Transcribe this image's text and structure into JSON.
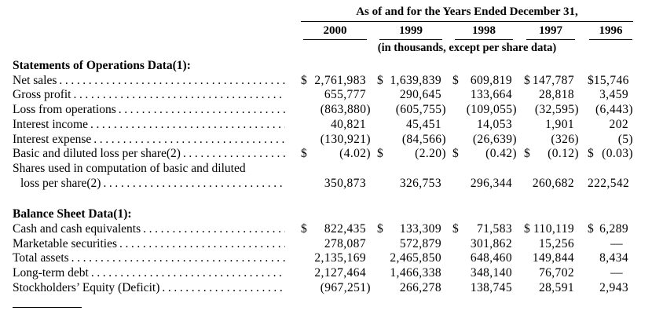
{
  "table": {
    "period_header": "As of and for the Years Ended December 31,",
    "years": [
      "2000",
      "1999",
      "1998",
      "1997",
      "1996"
    ],
    "units_note": "(in thousands, except per share data)",
    "sections": [
      {
        "title": "Statements of Operations Data(1):",
        "rows": [
          {
            "label": "Net sales",
            "values": [
              {
                "cur": "$",
                "val": "2,761,983"
              },
              {
                "cur": "$",
                "val": "1,639,839"
              },
              {
                "cur": "$",
                "val": "609,819"
              },
              {
                "cur": "$",
                "val": "147,787"
              },
              {
                "cur": "$",
                "val": "15,746"
              }
            ]
          },
          {
            "label": "Gross profit",
            "values": [
              {
                "val": "655,777"
              },
              {
                "val": "290,645"
              },
              {
                "val": "133,664"
              },
              {
                "val": "28,818"
              },
              {
                "val": "3,459"
              }
            ]
          },
          {
            "label": "Loss from operations",
            "values": [
              {
                "val": "(863,880)"
              },
              {
                "val": "(605,755)"
              },
              {
                "val": "(109,055)"
              },
              {
                "val": "(32,595)"
              },
              {
                "val": "(6,443)"
              }
            ]
          },
          {
            "label": "Interest income",
            "values": [
              {
                "val": "40,821"
              },
              {
                "val": "45,451"
              },
              {
                "val": "14,053"
              },
              {
                "val": "1,901"
              },
              {
                "val": "202"
              }
            ]
          },
          {
            "label": "Interest expense",
            "values": [
              {
                "val": "(130,921)"
              },
              {
                "val": "(84,566)"
              },
              {
                "val": "(26,639)"
              },
              {
                "val": "(326)"
              },
              {
                "val": "(5)"
              }
            ]
          },
          {
            "label": "Basic and diluted loss per share(2)",
            "values": [
              {
                "cur": "$",
                "val": "(4.02)"
              },
              {
                "cur": "$",
                "val": "(2.20)"
              },
              {
                "cur": "$",
                "val": "(0.42)"
              },
              {
                "cur": "$",
                "val": "(0.12)"
              },
              {
                "cur": "$",
                "val": "(0.03)"
              }
            ]
          },
          {
            "label_line1": "Shares used in computation of basic and diluted",
            "label_line2": "loss per share(2)",
            "values": [
              {
                "val": "350,873"
              },
              {
                "val": "326,753"
              },
              {
                "val": "296,344"
              },
              {
                "val": "260,682"
              },
              {
                "val": "222,542"
              }
            ]
          }
        ]
      },
      {
        "title": "Balance Sheet Data(1):",
        "rows": [
          {
            "label": "Cash and cash equivalents",
            "values": [
              {
                "cur": "$",
                "val": "822,435"
              },
              {
                "cur": "$",
                "val": "133,309"
              },
              {
                "cur": "$",
                "val": "71,583"
              },
              {
                "cur": "$",
                "val": "110,119"
              },
              {
                "cur": "$",
                "val": "6,289"
              }
            ]
          },
          {
            "label": "Marketable securities",
            "values": [
              {
                "val": "278,087"
              },
              {
                "val": "572,879"
              },
              {
                "val": "301,862"
              },
              {
                "val": "15,256"
              },
              {
                "val": "—"
              }
            ]
          },
          {
            "label": "Total assets",
            "values": [
              {
                "val": "2,135,169"
              },
              {
                "val": "2,465,850"
              },
              {
                "val": "648,460"
              },
              {
                "val": "149,844"
              },
              {
                "val": "8,434"
              }
            ]
          },
          {
            "label": "Long-term debt",
            "values": [
              {
                "val": "2,127,464"
              },
              {
                "val": "1,466,338"
              },
              {
                "val": "348,140"
              },
              {
                "val": "76,702"
              },
              {
                "val": "—"
              }
            ]
          },
          {
            "label": "Stockholders’ Equity (Deficit)",
            "values": [
              {
                "val": "(967,251)"
              },
              {
                "val": "266,278"
              },
              {
                "val": "138,745"
              },
              {
                "val": "28,591"
              },
              {
                "val": "2,943"
              }
            ]
          }
        ]
      }
    ]
  }
}
